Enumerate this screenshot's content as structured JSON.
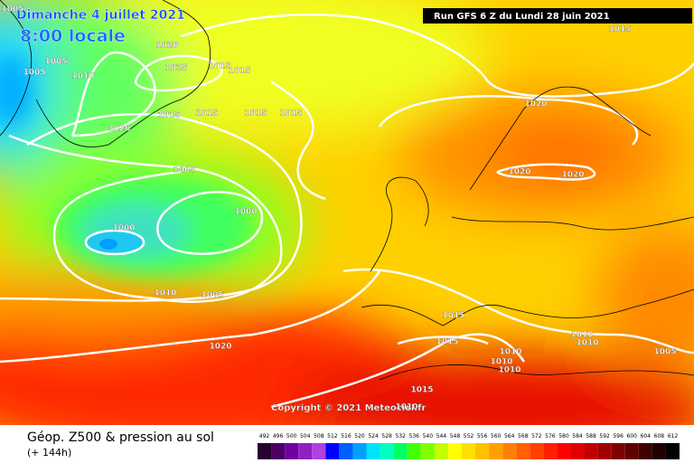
{
  "header": {
    "date": "Dimanche 4 juillet 2021",
    "time": "8:00 locale",
    "run": "Run GFS 6 Z du Lundi 28 juin 2021"
  },
  "isobar_labels": [
    "1005",
    "1005",
    "1005",
    "1010",
    "1020",
    "1025",
    "1015",
    "1015",
    "1015",
    "1020",
    "1015",
    "1015",
    "1015",
    "1015",
    "1020",
    "1005",
    "1000",
    "1000",
    "1020",
    "1020",
    "1010",
    "1005",
    "1015",
    "1015",
    "1020",
    "1010",
    "1010",
    "1005",
    "1010",
    "1010",
    "1010",
    "1015",
    "1010"
  ],
  "copyright": "Copyright © 2021 Meteociel.fr",
  "legend": {
    "title": "Géop. Z500 & pression au sol",
    "lead": "(+ 144h)",
    "scale": [
      492,
      496,
      500,
      504,
      508,
      512,
      516,
      520,
      524,
      528,
      532,
      536,
      540,
      544,
      548,
      552,
      556,
      560,
      564,
      568,
      572,
      576,
      580,
      584,
      588,
      592,
      596,
      600,
      604,
      608,
      612
    ]
  }
}
